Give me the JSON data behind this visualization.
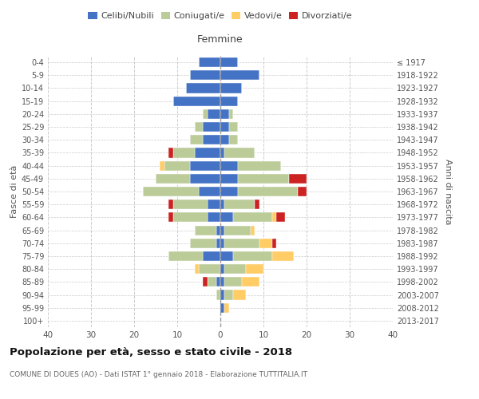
{
  "age_groups": [
    "0-4",
    "5-9",
    "10-14",
    "15-19",
    "20-24",
    "25-29",
    "30-34",
    "35-39",
    "40-44",
    "45-49",
    "50-54",
    "55-59",
    "60-64",
    "65-69",
    "70-74",
    "75-79",
    "80-84",
    "85-89",
    "90-94",
    "95-99",
    "100+"
  ],
  "birth_years": [
    "2013-2017",
    "2008-2012",
    "2003-2007",
    "1998-2002",
    "1993-1997",
    "1988-1992",
    "1983-1987",
    "1978-1982",
    "1973-1977",
    "1968-1972",
    "1963-1967",
    "1958-1962",
    "1953-1957",
    "1948-1952",
    "1943-1947",
    "1938-1942",
    "1933-1937",
    "1928-1932",
    "1923-1927",
    "1918-1922",
    "≤ 1917"
  ],
  "male": {
    "celibe": [
      5,
      7,
      8,
      11,
      3,
      4,
      4,
      6,
      7,
      7,
      5,
      3,
      3,
      1,
      1,
      4,
      0,
      1,
      0,
      0,
      0
    ],
    "coniugato": [
      0,
      0,
      0,
      0,
      1,
      2,
      3,
      5,
      6,
      8,
      13,
      8,
      8,
      5,
      6,
      8,
      5,
      2,
      1,
      0,
      0
    ],
    "vedovo": [
      0,
      0,
      0,
      0,
      0,
      0,
      0,
      0,
      1,
      0,
      0,
      0,
      0,
      0,
      0,
      0,
      1,
      0,
      0,
      0,
      0
    ],
    "divorziato": [
      0,
      0,
      0,
      0,
      0,
      0,
      0,
      1,
      0,
      0,
      0,
      1,
      1,
      0,
      0,
      0,
      0,
      1,
      0,
      0,
      0
    ]
  },
  "female": {
    "nubile": [
      4,
      9,
      5,
      4,
      2,
      2,
      2,
      1,
      4,
      4,
      4,
      1,
      3,
      1,
      1,
      3,
      1,
      1,
      1,
      1,
      0
    ],
    "coniugata": [
      0,
      0,
      0,
      0,
      1,
      2,
      2,
      7,
      10,
      12,
      14,
      7,
      9,
      6,
      8,
      9,
      5,
      4,
      2,
      0,
      0
    ],
    "vedova": [
      0,
      0,
      0,
      0,
      0,
      0,
      0,
      0,
      0,
      0,
      0,
      0,
      1,
      1,
      3,
      5,
      4,
      4,
      3,
      1,
      0
    ],
    "divorziata": [
      0,
      0,
      0,
      0,
      0,
      0,
      0,
      0,
      0,
      4,
      2,
      1,
      2,
      0,
      1,
      0,
      0,
      0,
      0,
      0,
      0
    ]
  },
  "colors": {
    "celibe": "#4472C4",
    "coniugato": "#BBCC99",
    "vedovo": "#FFCC66",
    "divorziato": "#CC2222"
  },
  "legend_labels": [
    "Celibi/Nubili",
    "Coniugati/e",
    "Vedovi/e",
    "Divorziati/e"
  ],
  "title": "Popolazione per età, sesso e stato civile - 2018",
  "subtitle": "COMUNE DI DOUES (AO) - Dati ISTAT 1° gennaio 2018 - Elaborazione TUTTITALIA.IT",
  "ylabel_left": "Fasce di età",
  "ylabel_right": "Anni di nascita",
  "xlabel_right": "Femmine",
  "xlim": 40,
  "bg_color": "#FFFFFF",
  "grid_color": "#CCCCCC"
}
